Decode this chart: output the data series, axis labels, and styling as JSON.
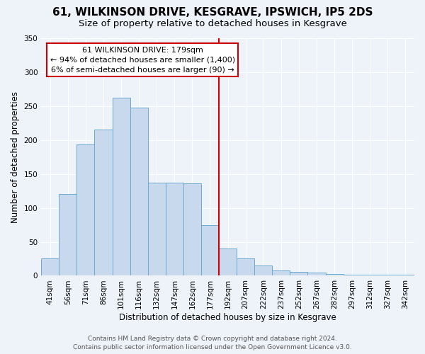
{
  "title": "61, WILKINSON DRIVE, KESGRAVE, IPSWICH, IP5 2DS",
  "subtitle": "Size of property relative to detached houses in Kesgrave",
  "xlabel": "Distribution of detached houses by size in Kesgrave",
  "ylabel": "Number of detached properties",
  "bar_labels": [
    "41sqm",
    "56sqm",
    "71sqm",
    "86sqm",
    "101sqm",
    "116sqm",
    "132sqm",
    "147sqm",
    "162sqm",
    "177sqm",
    "192sqm",
    "207sqm",
    "222sqm",
    "237sqm",
    "252sqm",
    "267sqm",
    "282sqm",
    "297sqm",
    "312sqm",
    "327sqm",
    "342sqm"
  ],
  "bar_heights": [
    25,
    120,
    193,
    215,
    262,
    248,
    137,
    137,
    136,
    75,
    40,
    25,
    15,
    8,
    6,
    5,
    3,
    2,
    1,
    1,
    2
  ],
  "bar_color": "#c8d9ee",
  "bar_edge_color": "#6aaad4",
  "vline_color": "#cc0000",
  "annotation_title": "61 WILKINSON DRIVE: 179sqm",
  "annotation_line1": "← 94% of detached houses are smaller (1,400)",
  "annotation_line2": "6% of semi-detached houses are larger (90) →",
  "annotation_box_color": "#cc0000",
  "ylim": [
    0,
    350
  ],
  "yticks": [
    0,
    50,
    100,
    150,
    200,
    250,
    300,
    350
  ],
  "footer1": "Contains HM Land Registry data © Crown copyright and database right 2024.",
  "footer2": "Contains public sector information licensed under the Open Government Licence v3.0.",
  "bg_color": "#eef2f9",
  "plot_bg_color": "#eef2f9",
  "title_fontsize": 11,
  "subtitle_fontsize": 9.5,
  "axis_label_fontsize": 8.5,
  "tick_fontsize": 7.5,
  "annotation_fontsize": 8,
  "footer_fontsize": 6.5
}
